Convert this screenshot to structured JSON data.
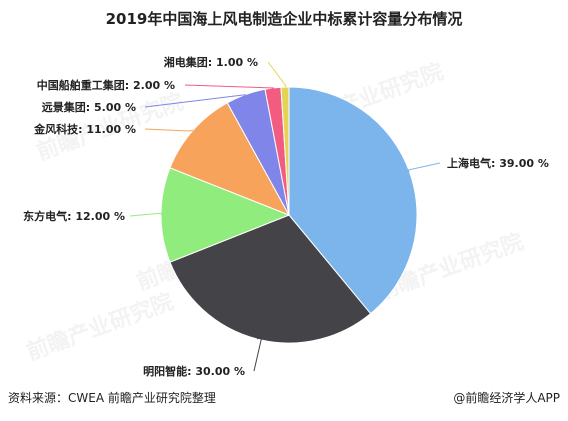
{
  "chart_data": {
    "type": "pie",
    "title": "2019年中国海上风电制造企业中标累计容量分布情况",
    "slices": [
      {
        "name": "上海电气",
        "value": 39.0,
        "label": "上海电气: 39.00 %",
        "color": "#7cb5ec"
      },
      {
        "name": "明阳智能",
        "value": 30.0,
        "label": "明阳智能: 30.00 %",
        "color": "#434348"
      },
      {
        "name": "东方电气",
        "value": 12.0,
        "label": "东方电气: 12.00 %",
        "color": "#90ed7d"
      },
      {
        "name": "金风科技",
        "value": 11.0,
        "label": "金风科技: 11.00 %",
        "color": "#f7a35c"
      },
      {
        "name": "远景集团",
        "value": 5.0,
        "label": "远景集团: 5.00 %",
        "color": "#8085e9"
      },
      {
        "name": "中国船舶重工集团",
        "value": 2.0,
        "label": "中国船舶重工集团: 2.00 %",
        "color": "#f15c80"
      },
      {
        "name": "湘电集团",
        "value": 1.0,
        "label": "湘电集团: 1.00 %",
        "color": "#e4d354"
      }
    ]
  },
  "footer": {
    "source": "资料来源：CWEA 前瞻产业研究院整理",
    "brand": "@前瞻经济学人APP"
  },
  "watermark": {
    "text": "前瞻产业研究院"
  }
}
